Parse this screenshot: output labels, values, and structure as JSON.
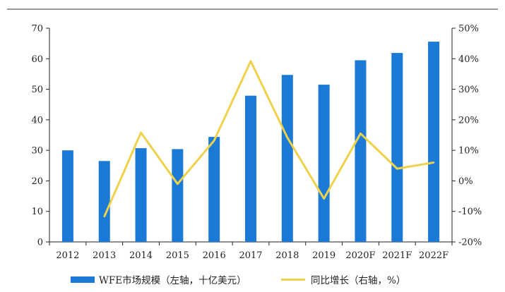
{
  "chart_data": {
    "type": "bar",
    "categories": [
      "2012",
      "2013",
      "2014",
      "2015",
      "2016",
      "2017",
      "2018",
      "2019",
      "2020F",
      "2021F",
      "2022F"
    ],
    "series": [
      {
        "name": "WFE市场规模（左轴，十亿美元）",
        "type": "bar",
        "axis": "left",
        "color": "#1a7ad6",
        "values": [
          30.0,
          26.5,
          30.7,
          30.4,
          34.4,
          47.9,
          54.7,
          51.5,
          59.5,
          61.9,
          65.6
        ]
      },
      {
        "name": "同比增长（右轴，%）",
        "type": "line",
        "axis": "right",
        "color": "#f0d24a",
        "values": [
          null,
          -11.7,
          15.8,
          -1.0,
          13.2,
          39.2,
          14.2,
          -5.8,
          15.5,
          4.0,
          6.0
        ]
      }
    ],
    "left_axis": {
      "ylim": [
        0,
        70
      ],
      "ticks": [
        "0",
        "10",
        "20",
        "30",
        "40",
        "50",
        "60",
        "70"
      ]
    },
    "right_axis": {
      "ylim": [
        -20,
        50
      ],
      "ticks": [
        "-20%",
        "-10%",
        "0%",
        "10%",
        "20%",
        "30%",
        "40%",
        "50%"
      ]
    },
    "grid": false,
    "legend_position": "bottom"
  }
}
